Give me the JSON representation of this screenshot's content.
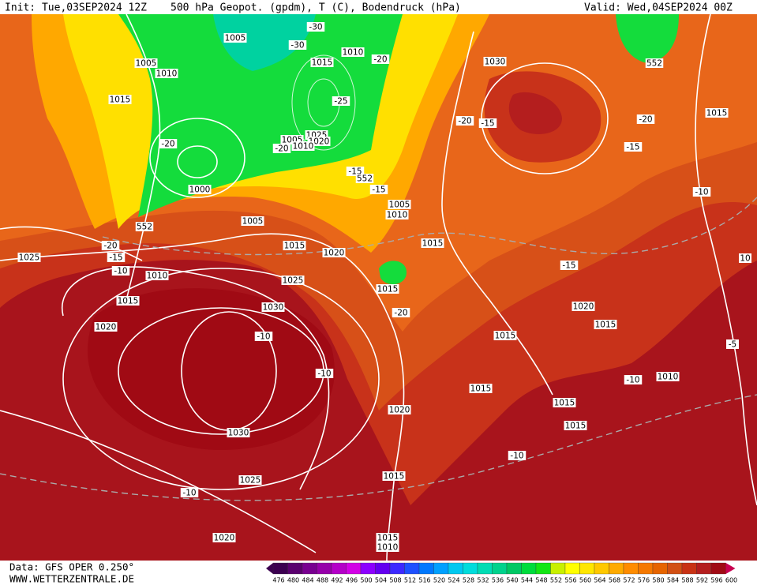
{
  "header": {
    "init": "Init: Tue,03SEP2024 12Z",
    "title": "500 hPa Geopot. (gpdm), T (C), Bodendruck (hPa)",
    "valid": "Valid: Wed,04SEP2024 00Z"
  },
  "footer": {
    "data": "Data: GFS OPER 0.250°",
    "site": "WWW.WETTERZENTRALE.DE"
  },
  "legend": {
    "labels": [
      "476",
      "480",
      "484",
      "488",
      "492",
      "496",
      "500",
      "504",
      "508",
      "512",
      "516",
      "520",
      "524",
      "528",
      "532",
      "536",
      "540",
      "544",
      "548",
      "552",
      "556",
      "560",
      "564",
      "568",
      "572",
      "576",
      "580",
      "584",
      "588",
      "592",
      "596",
      "600"
    ],
    "colors": [
      "#3c0050",
      "#5a006e",
      "#780090",
      "#9600aa",
      "#b400c8",
      "#d200e6",
      "#8c00ff",
      "#6400f0",
      "#3c28ff",
      "#1e50ff",
      "#0078ff",
      "#00a0ff",
      "#00c8f0",
      "#00dcdc",
      "#00dcb4",
      "#00d28c",
      "#00c864",
      "#00dc3c",
      "#14e614",
      "#c8f000",
      "#ffff00",
      "#ffe600",
      "#ffc800",
      "#ffaa00",
      "#ff8c00",
      "#f57800",
      "#e66400",
      "#d25014",
      "#c83214",
      "#b41e1e",
      "#a00a14",
      "#c80050"
    ]
  },
  "contour_labels": [
    "1005",
    "1005",
    "1010",
    "1015",
    "1015",
    "1010",
    "-30",
    "-30",
    "-20",
    "1030",
    "552",
    "-25",
    "1015",
    "-20",
    "-20",
    "-15",
    "-15",
    "1025",
    "1005",
    "1020",
    "1010",
    "-20",
    "-20",
    "-15",
    "552",
    "-15",
    "1000",
    "-10",
    "1005",
    "1010",
    "1005",
    "552",
    "1015",
    "1015",
    "-20",
    "-15",
    "-10",
    "1025",
    "1020",
    "1010",
    "1025",
    "-15",
    "10",
    "1015",
    "1015",
    "1030",
    "1020",
    "-20",
    "1015",
    "1020",
    "-10",
    "1015",
    "-5",
    "-10",
    "1010",
    "-10",
    "1015",
    "1020",
    "1015",
    "1015",
    "1030",
    "-10",
    "1025",
    "1015",
    "-10",
    "1020",
    "1015",
    "1010"
  ]
}
